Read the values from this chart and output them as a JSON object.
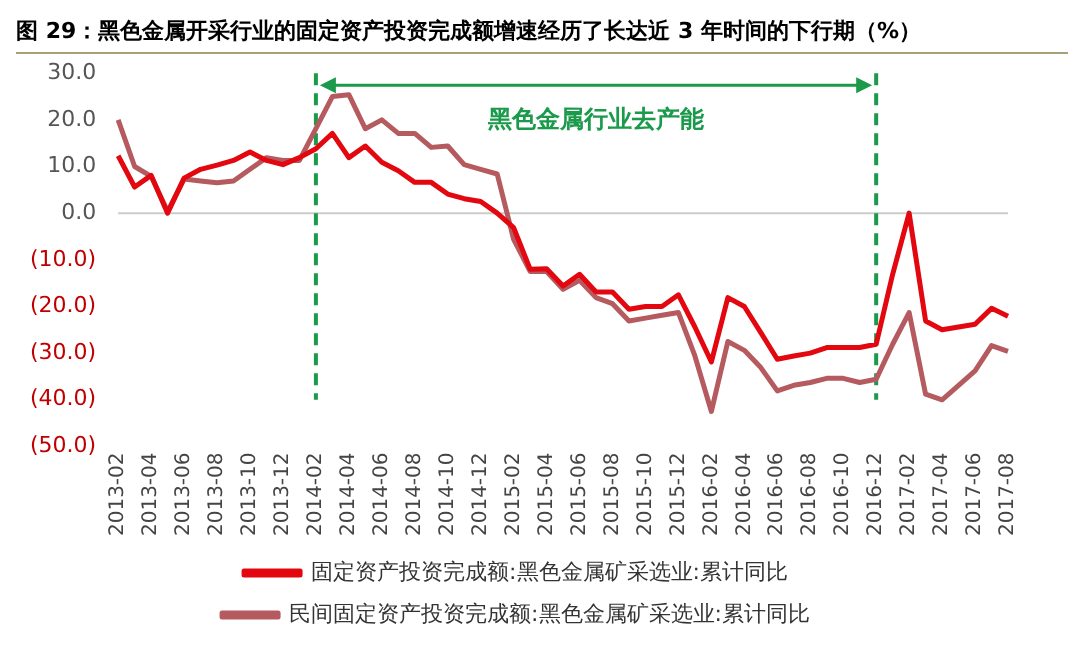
{
  "chart_data": {
    "type": "line",
    "title": "图 29：黑色金属开采行业的固定资产投资完成额增速经历了长达近 3 年时间的下行期（%）",
    "categories": [
      "2013-02",
      null,
      "2013-04",
      null,
      "2013-06",
      null,
      "2013-08",
      null,
      "2013-10",
      null,
      "2013-12",
      null,
      "2014-02",
      null,
      "2014-04",
      null,
      "2014-06",
      null,
      "2014-08",
      null,
      "2014-10",
      null,
      "2014-12",
      null,
      "2015-02",
      null,
      "2015-04",
      null,
      "2015-06",
      null,
      "2015-08",
      null,
      "2015-10",
      null,
      "2015-12",
      null,
      "2016-02",
      null,
      "2016-04",
      null,
      "2016-06",
      null,
      "2016-08",
      null,
      "2016-10",
      null,
      "2016-12",
      null,
      "2017-02",
      null,
      "2017-04",
      null,
      "2017-06",
      null,
      "2017-08"
    ],
    "series": [
      {
        "name": "固定资产投资完成额:黑色金属矿采选业:累计同比",
        "color": "#e3070f",
        "values": [
          12.3,
          5.6,
          8.1,
          0,
          7.5,
          9.4,
          10.3,
          11.3,
          13.1,
          11.3,
          10.4,
          11.9,
          13.8,
          17.1,
          11.9,
          14.4,
          10.9,
          9.1,
          6.6,
          6.6,
          4.1,
          3.1,
          2.5,
          0,
          -3.1,
          -12,
          -11.9,
          -15.6,
          -13.1,
          -16.9,
          -16.9,
          -20.6,
          -20,
          -20,
          -17.5,
          -24.4,
          -31.9,
          -18.1,
          -20,
          -25.6,
          -31.3,
          -30.6,
          -30,
          -28.8,
          -28.8,
          -28.8,
          -28.1,
          -13.1,
          0,
          -23.1,
          -25,
          -24.4,
          -23.8,
          -20.4,
          -22.1
        ]
      },
      {
        "name": "民间固定资产投资完成额:黑色金属矿采选业:累计同比",
        "color": "#b55a5e",
        "values": [
          20,
          10,
          7.9,
          0.4,
          7.3,
          6.9,
          6.5,
          6.9,
          9.4,
          11.9,
          11.3,
          11.3,
          18.1,
          25,
          25.4,
          18.1,
          20,
          17.1,
          17.1,
          14.1,
          14.4,
          10.4,
          9.4,
          8.4,
          -5.6,
          -12.5,
          -12.5,
          -16.3,
          -14.4,
          -18.1,
          -19.4,
          -23.1,
          -22.5,
          -21.9,
          -21.3,
          -30.6,
          -42.5,
          -27.5,
          -29.4,
          -33.1,
          -38.1,
          -36.9,
          -36.3,
          -35.4,
          -35.4,
          -36.3,
          -35.6,
          -28.1,
          -21.3,
          -38.8,
          -40,
          -36.9,
          -33.8,
          -28.4,
          -29.6
        ]
      }
    ],
    "ylim": [
      -50,
      30
    ],
    "yticks": [
      {
        "value": 30,
        "label": "30.0"
      },
      {
        "value": 20,
        "label": "20.0"
      },
      {
        "value": 10,
        "label": "10.0"
      },
      {
        "value": 0,
        "label": "0.0"
      },
      {
        "value": -10,
        "label": "(10.0)"
      },
      {
        "value": -20,
        "label": "(20.0)"
      },
      {
        "value": -30,
        "label": "(30.0)"
      },
      {
        "value": -40,
        "label": "(40.0)"
      },
      {
        "value": -50,
        "label": "(50.0)"
      }
    ],
    "ref_lines": [
      {
        "axis": "x",
        "value": "2014-02",
        "color": "#1a9a4a",
        "line_style": "dashed"
      },
      {
        "axis": "x",
        "value": "2016-12",
        "color": "#1a9a4a",
        "line_style": "dashed"
      }
    ],
    "annotations": [
      "黑色金属行业去产能"
    ],
    "grid": false,
    "legend": "bottom",
    "marker": "none",
    "line_style": "solid"
  }
}
